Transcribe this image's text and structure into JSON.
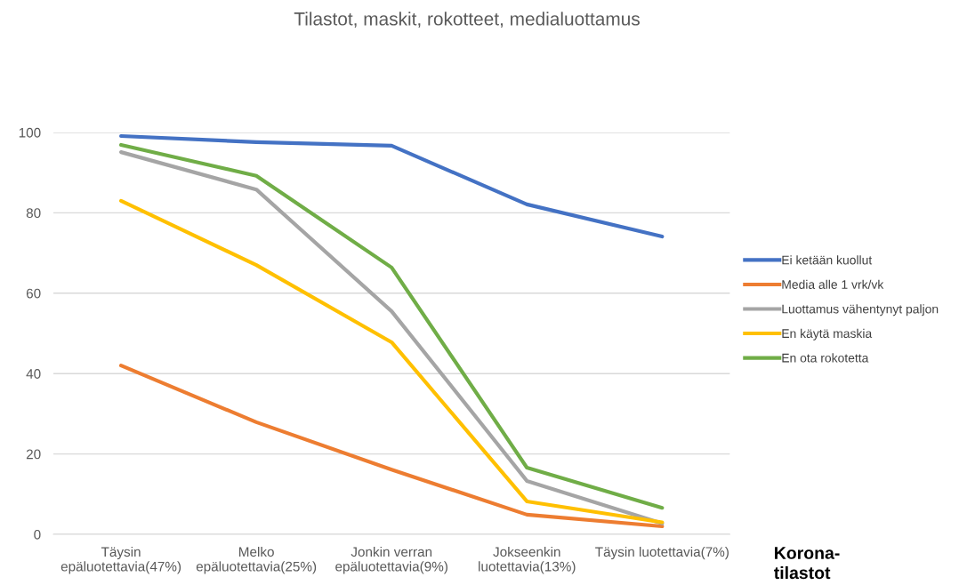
{
  "chart_data": {
    "type": "line",
    "title": "Tilastot, maskit, rokotteet, medialuottamus",
    "xlabel": "Korona-\ntilastot",
    "categories": [
      "Täysin\nepäluotettavia(47%)",
      "Melko\nepäluotettavia(25%)",
      "Jonkin verran\nepäluotettavia(9%)",
      "Jokseenkin\nluotettavia(13%)",
      "Täysin luotettavia(7%)"
    ],
    "series": [
      {
        "name": "Ei ketään kuollut",
        "color": "#4472c4",
        "values": [
          99.1,
          97.6,
          96.7,
          82.1,
          74.1
        ]
      },
      {
        "name": "Media alle 1 vrk/vk",
        "color": "#ed7d31",
        "values": [
          42.0,
          27.9,
          16.1,
          4.9,
          2.0
        ]
      },
      {
        "name": "Luottamus vähentynyt paljon",
        "color": "#a5a5a5",
        "values": [
          95.1,
          85.8,
          55.5,
          13.3,
          2.7
        ]
      },
      {
        "name": "En käytä maskia",
        "color": "#ffc000",
        "values": [
          83.0,
          67.0,
          47.8,
          8.2,
          3.0
        ]
      },
      {
        "name": "En ota rokotetta",
        "color": "#70ad47",
        "values": [
          96.9,
          89.2,
          66.4,
          16.6,
          6.6
        ]
      }
    ],
    "ylim": [
      0,
      100
    ],
    "yticks": [
      0,
      20,
      40,
      60,
      80,
      100
    ],
    "grid": "y",
    "legend": "right",
    "marker": "none",
    "line_style": "solid"
  }
}
